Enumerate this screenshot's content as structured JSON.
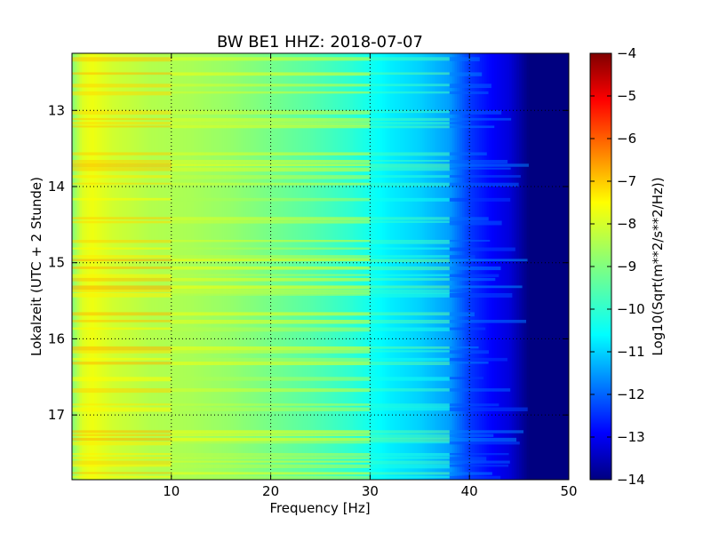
{
  "chart_data": {
    "type": "heatmap",
    "title": "BW BE1 HHZ: 2018-07-07",
    "xlabel": "Frequency [Hz]",
    "ylabel": "Lokalzeit (UTC + 2 Stunde)",
    "xlim": [
      0,
      50
    ],
    "ylim": [
      12.25,
      17.85
    ],
    "x_ticks": [
      10,
      20,
      30,
      40,
      50
    ],
    "y_ticks": [
      13,
      14,
      15,
      16,
      17
    ],
    "y_inverted": true,
    "grid": true,
    "colormap": "jet",
    "colorbar": {
      "label": "Log10(Sqrt(m**2/s**2/Hz))",
      "range": [
        -14,
        -4
      ],
      "ticks": [
        -4,
        -5,
        -6,
        -7,
        -8,
        -9,
        -10,
        -11,
        -12,
        -13,
        -14
      ]
    },
    "profile": {
      "frequency_hz": [
        0,
        1,
        2,
        4,
        8,
        12,
        16,
        20,
        24,
        28,
        32,
        35,
        38,
        40,
        42,
        44,
        46,
        50
      ],
      "log10_amplitude": [
        -9.0,
        -8.1,
        -7.9,
        -8.2,
        -8.5,
        -8.6,
        -8.8,
        -9.1,
        -9.4,
        -9.8,
        -10.4,
        -10.7,
        -11.2,
        -12.2,
        -12.7,
        -13.1,
        -14.0,
        -14.0
      ]
    }
  }
}
